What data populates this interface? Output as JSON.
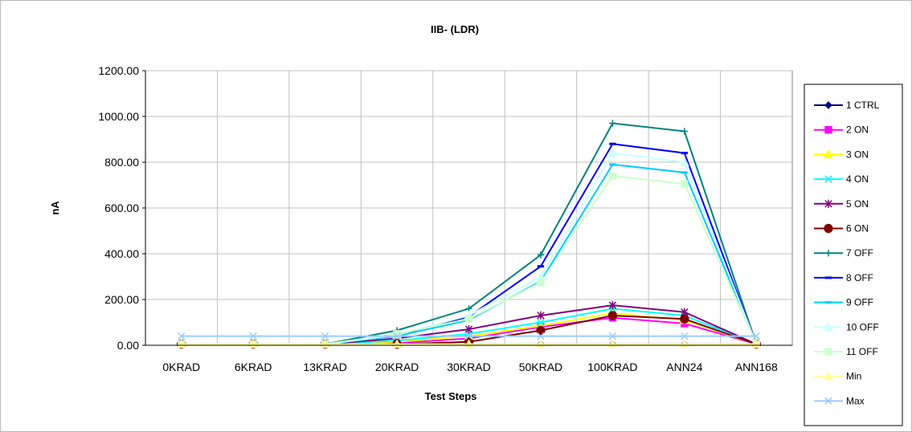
{
  "chart_data": {
    "type": "line",
    "title": "IIB- (LDR)",
    "xlabel": "Test Steps",
    "ylabel": "nA",
    "ylim": [
      0,
      1200
    ],
    "y_ticks": [
      "0.00",
      "200.00",
      "400.00",
      "600.00",
      "800.00",
      "1000.00",
      "1200.00"
    ],
    "categories": [
      "0KRAD",
      "6KRAD",
      "13KRAD",
      "20KRAD",
      "30KRAD",
      "50KRAD",
      "100KRAD",
      "ANN24",
      "ANN168"
    ],
    "grid": "vertical and horizontal",
    "legend_position": "right",
    "series": [
      {
        "name": "1 CTRL",
        "color": "#000080",
        "marker": "diamond",
        "values": [
          5,
          5,
          5,
          5,
          5,
          5,
          5,
          5,
          5
        ]
      },
      {
        "name": "2 ON",
        "color": "#ff00ff",
        "marker": "square",
        "values": [
          5,
          5,
          5,
          10,
          30,
          80,
          120,
          95,
          5
        ]
      },
      {
        "name": "3 ON",
        "color": "#ffff00",
        "marker": "triangle",
        "values": [
          5,
          5,
          5,
          15,
          40,
          85,
          140,
          110,
          5
        ]
      },
      {
        "name": "4 ON",
        "color": "#00ffff",
        "marker": "x",
        "values": [
          5,
          5,
          5,
          20,
          50,
          100,
          160,
          130,
          5
        ]
      },
      {
        "name": "5 ON",
        "color": "#800080",
        "marker": "star",
        "values": [
          5,
          5,
          5,
          30,
          70,
          130,
          175,
          145,
          5
        ]
      },
      {
        "name": "6 ON",
        "color": "#800000",
        "marker": "circle",
        "values": [
          5,
          5,
          5,
          5,
          15,
          65,
          130,
          115,
          5
        ]
      },
      {
        "name": "7 OFF",
        "color": "#008080",
        "marker": "plus",
        "values": [
          5,
          5,
          5,
          65,
          160,
          395,
          970,
          935,
          5
        ]
      },
      {
        "name": "8 OFF",
        "color": "#0000ff",
        "marker": "dash",
        "values": [
          5,
          5,
          5,
          45,
          125,
          345,
          880,
          840,
          5
        ]
      },
      {
        "name": "9 OFF",
        "color": "#00ccff",
        "marker": "dash",
        "values": [
          5,
          5,
          5,
          40,
          110,
          280,
          790,
          755,
          5
        ]
      },
      {
        "name": "10 OFF",
        "color": "#ccffff",
        "marker": "triangle",
        "values": [
          5,
          5,
          5,
          45,
          130,
          300,
          840,
          800,
          5
        ]
      },
      {
        "name": "11 OFF",
        "color": "#ccffcc",
        "marker": "square",
        "values": [
          5,
          5,
          5,
          50,
          115,
          275,
          740,
          705,
          5
        ]
      },
      {
        "name": "Min",
        "color": "#ffff99",
        "marker": "triangle",
        "values": [
          5,
          5,
          5,
          5,
          5,
          5,
          5,
          5,
          5
        ]
      },
      {
        "name": "Max",
        "color": "#99ccff",
        "marker": "x",
        "values": [
          40,
          40,
          40,
          40,
          40,
          40,
          40,
          40,
          40
        ]
      }
    ]
  }
}
